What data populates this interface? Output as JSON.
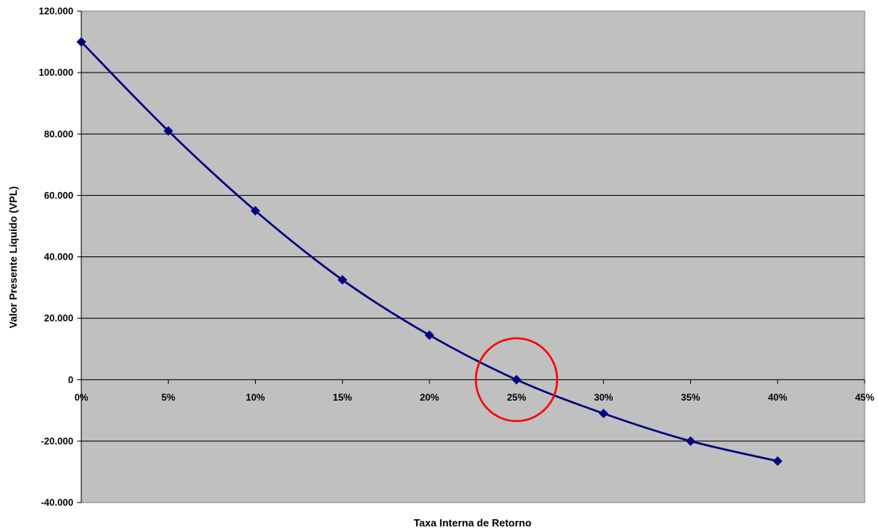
{
  "chart_data": {
    "type": "line",
    "title": "",
    "xlabel": "Taxa Interna de Retorno",
    "ylabel": "Valor Presente Líquido (VPL)",
    "xlim": [
      0,
      45
    ],
    "ylim": [
      -40000,
      120000
    ],
    "x_ticks": [
      0,
      5,
      10,
      15,
      20,
      25,
      30,
      35,
      40,
      45
    ],
    "x_tick_labels": [
      "0%",
      "5%",
      "10%",
      "15%",
      "20%",
      "25%",
      "30%",
      "35%",
      "40%",
      "45%"
    ],
    "y_ticks": [
      -40000,
      -20000,
      0,
      20000,
      40000,
      60000,
      80000,
      100000,
      120000
    ],
    "y_tick_labels": [
      "-40.000",
      "-20.000",
      "0",
      "20.000",
      "40.000",
      "60.000",
      "80.000",
      "100.000",
      "120.000"
    ],
    "grid": "horizontal",
    "series": [
      {
        "x": [
          0,
          5,
          10,
          15,
          20,
          25,
          30,
          35,
          40
        ],
        "values": [
          110000,
          81000,
          55000,
          32500,
          14500,
          0,
          -11000,
          -20000,
          -26500
        ]
      }
    ],
    "annotation": {
      "type": "circle",
      "x": 25,
      "y": 0
    },
    "colors": {
      "plot_background": "#c0c0c0",
      "line": "#000080",
      "gridline": "#000000",
      "annotation": "#ff0000"
    }
  }
}
